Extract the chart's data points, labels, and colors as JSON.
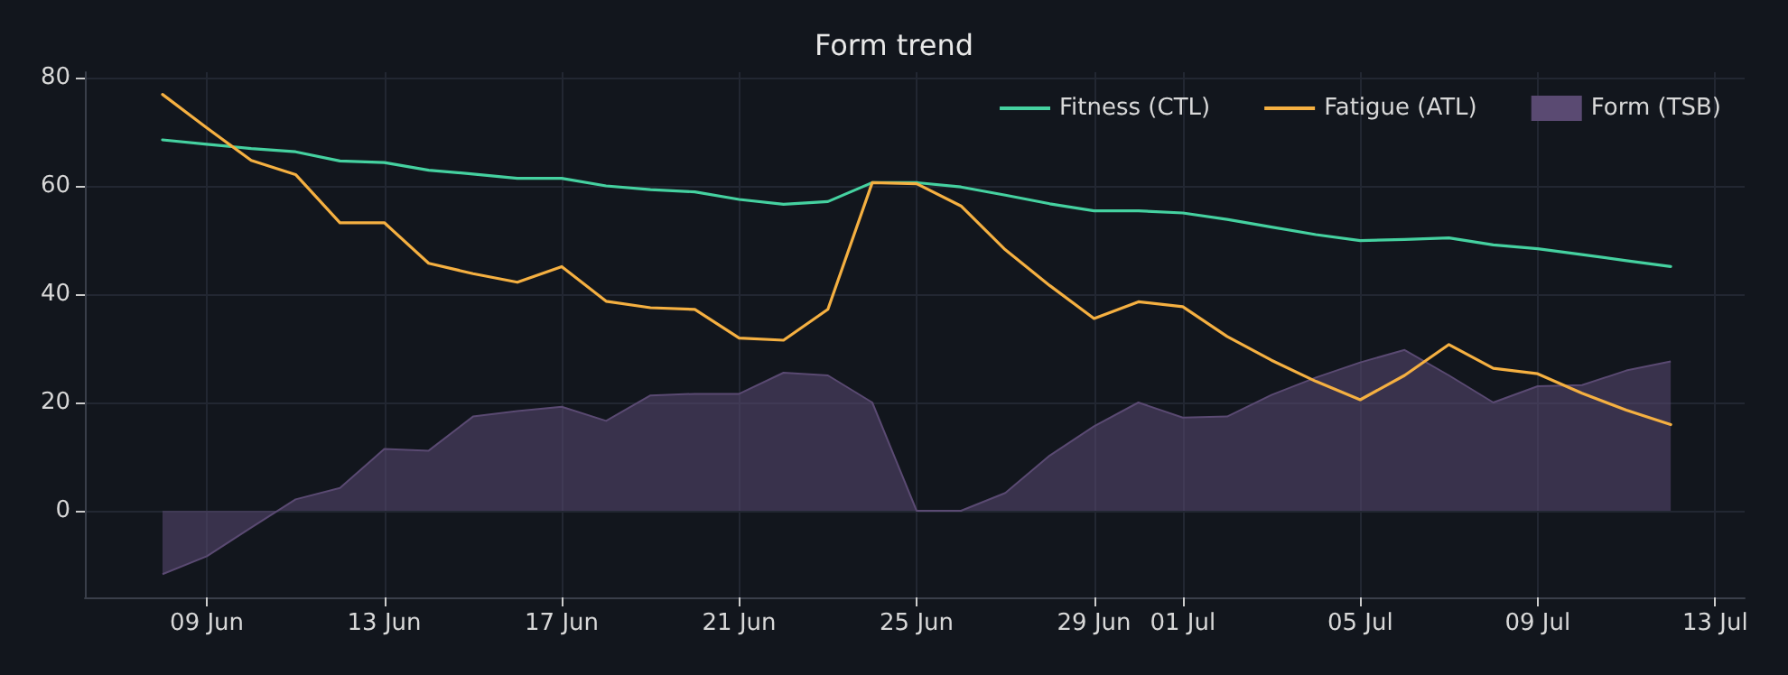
{
  "chart_data": {
    "type": "line",
    "title": "Form trend",
    "x": [
      "--06-08",
      "--06-09",
      "--06-10",
      "--06-11",
      "--06-12",
      "--06-13",
      "--06-14",
      "--06-15",
      "--06-16",
      "--06-17",
      "--06-18",
      "--06-19",
      "--06-20",
      "--06-21",
      "--06-22",
      "--06-23",
      "--06-24",
      "--06-25",
      "--06-26",
      "--06-27",
      "--06-28",
      "--06-29",
      "--06-30",
      "--07-01",
      "--07-02",
      "--07-03",
      "--07-04",
      "--07-05",
      "--07-06",
      "--07-07",
      "--07-08",
      "--07-09",
      "--07-10",
      "--07-11",
      "--07-12"
    ],
    "series": [
      {
        "name": "Fitness (CTL)",
        "color": "#45d1a0",
        "values": [
          68.5,
          67.7,
          66.9,
          66.3,
          64.6,
          64.3,
          62.9,
          62.2,
          61.4,
          61.4,
          60.0,
          59.3,
          58.9,
          57.5,
          56.6,
          57.1,
          60.6,
          60.6,
          59.8,
          58.3,
          56.7,
          55.4,
          55.4,
          55.0,
          53.8,
          52.4,
          51.0,
          49.9,
          50.1,
          50.4,
          49.1,
          48.4,
          47.3,
          46.2,
          45.1
        ]
      },
      {
        "name": "Fatigue (ATL)",
        "color": "#f5b041",
        "values": [
          76.9,
          70.7,
          64.7,
          62.1,
          53.2,
          53.2,
          45.7,
          43.8,
          42.2,
          45.1,
          38.7,
          37.5,
          37.2,
          31.9,
          31.5,
          37.2,
          60.6,
          60.4,
          56.3,
          48.2,
          41.6,
          35.5,
          38.6,
          37.7,
          32.2,
          27.8,
          23.9,
          20.5,
          25.0,
          30.7,
          26.3,
          25.3,
          21.7,
          18.6,
          15.9
        ]
      },
      {
        "name": "Form (TSB)",
        "type": "area",
        "color": "#5a4a72",
        "values": [
          -11.7,
          -8.4,
          -3.1,
          2.1,
          4.2,
          11.4,
          11.1,
          17.4,
          18.4,
          19.2,
          16.6,
          21.3,
          21.6,
          21.6,
          25.5,
          25.0,
          20.0,
          0,
          0,
          3.3,
          10.2,
          15.6,
          20.0,
          17.2,
          17.4,
          21.4,
          24.6,
          27.4,
          29.7,
          25.0,
          20.0,
          23.0,
          23.2,
          25.9,
          27.6
        ]
      }
    ],
    "xlim": [
      "--06-06T06:00",
      "--07-13T16:00"
    ],
    "xticks": [
      {
        "value": "--06-09",
        "label": "09 Jun"
      },
      {
        "value": "--06-13",
        "label": "13 Jun"
      },
      {
        "value": "--06-17",
        "label": "17 Jun"
      },
      {
        "value": "--06-21",
        "label": "21 Jun"
      },
      {
        "value": "--06-25",
        "label": "25 Jun"
      },
      {
        "value": "--06-29",
        "label": "29 Jun"
      },
      {
        "value": "--07-01",
        "label": "01 Jul"
      },
      {
        "value": "--07-05",
        "label": "05 Jul"
      },
      {
        "value": "--07-09",
        "label": "09 Jul"
      },
      {
        "value": "--07-13",
        "label": "13 Jul"
      }
    ],
    "ylim": [
      -16,
      81
    ],
    "yticks": [
      0,
      20,
      40,
      60,
      80
    ],
    "grid": true,
    "legend": "top right",
    "marker": "none",
    "line_style": "solid"
  }
}
